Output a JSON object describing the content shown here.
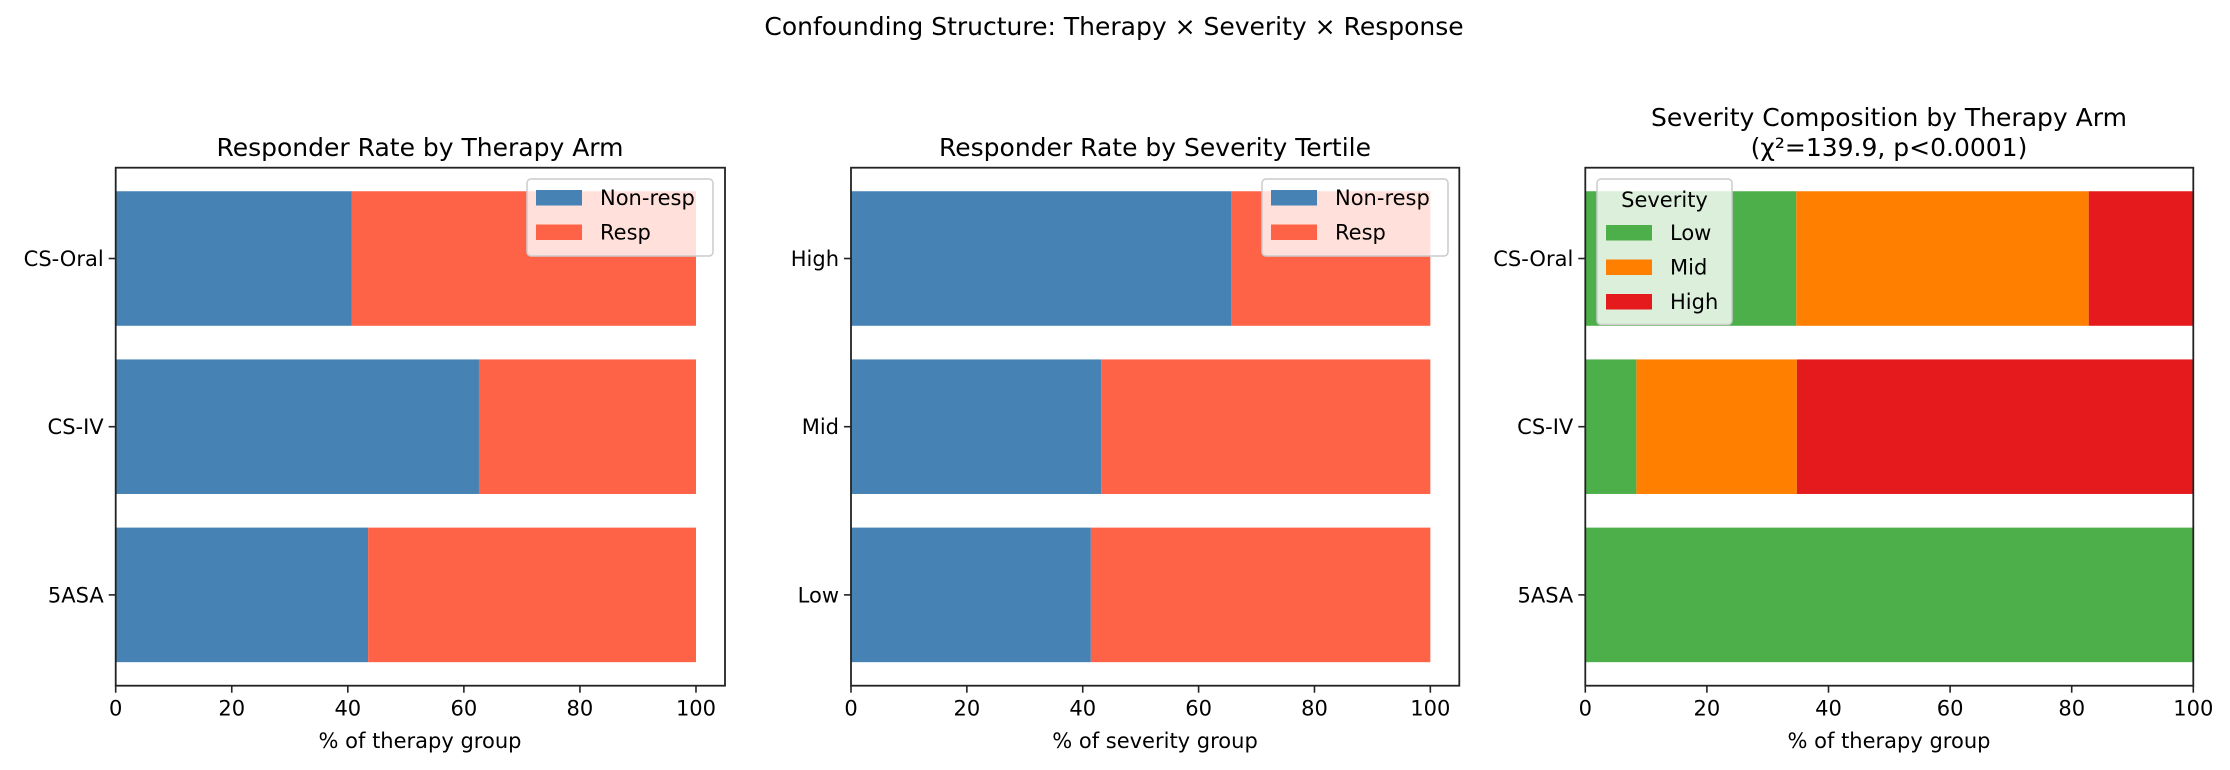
{
  "chart_data": {
    "suptitle": "Confounding Structure: Therapy × Severity × Response",
    "panels": [
      {
        "type": "bar",
        "orientation": "horizontal",
        "stacked": true,
        "title": "Responder Rate by Therapy Arm",
        "xlabel": "% of therapy group",
        "ylabel": "",
        "xlim": [
          0,
          105
        ],
        "xticks": [
          "0",
          "20",
          "40",
          "60",
          "80",
          "100"
        ],
        "categories": [
          "5ASA",
          "CS-IV",
          "CS-Oral"
        ],
        "series": [
          {
            "name": "Non-resp",
            "color": "#4682b4",
            "values": [
              43.5,
              62.6,
              40.7
            ]
          },
          {
            "name": "Resp",
            "color": "#ff6347",
            "values": [
              56.5,
              37.4,
              59.3
            ]
          }
        ],
        "legend": {
          "title": "",
          "placement": "upper right"
        },
        "grid": false
      },
      {
        "type": "bar",
        "orientation": "horizontal",
        "stacked": true,
        "title": "Responder Rate by Severity Tertile",
        "xlabel": "% of severity group",
        "ylabel": "",
        "xlim": [
          0,
          105
        ],
        "xticks": [
          "0",
          "20",
          "40",
          "60",
          "80",
          "100"
        ],
        "categories": [
          "Low",
          "Mid",
          "High"
        ],
        "series": [
          {
            "name": "Non-resp",
            "color": "#4682b4",
            "values": [
              41.4,
              43.2,
              65.6
            ]
          },
          {
            "name": "Resp",
            "color": "#ff6347",
            "values": [
              58.6,
              56.8,
              34.4
            ]
          }
        ],
        "legend": {
          "title": "",
          "placement": "upper right"
        },
        "grid": false
      },
      {
        "type": "bar",
        "orientation": "horizontal",
        "stacked": true,
        "title": "Severity Composition by Therapy Arm",
        "subtitle": "(χ²=139.9, p<0.0001)",
        "xlabel": "% of therapy group",
        "ylabel": "",
        "xlim": [
          0,
          100
        ],
        "xticks": [
          "0",
          "20",
          "40",
          "60",
          "80",
          "100"
        ],
        "categories": [
          "5ASA",
          "CS-IV",
          "CS-Oral"
        ],
        "series": [
          {
            "name": "Low",
            "color": "#4daf4a",
            "values": [
              100,
              8.4,
              34.7
            ]
          },
          {
            "name": "Mid",
            "color": "#ff7f00",
            "values": [
              0,
              26.4,
              48.1
            ]
          },
          {
            "name": "High",
            "color": "#e41a1c",
            "values": [
              0,
              65.2,
              17.2
            ]
          }
        ],
        "legend": {
          "title": "Severity",
          "placement": "upper left"
        },
        "grid": false
      }
    ]
  }
}
